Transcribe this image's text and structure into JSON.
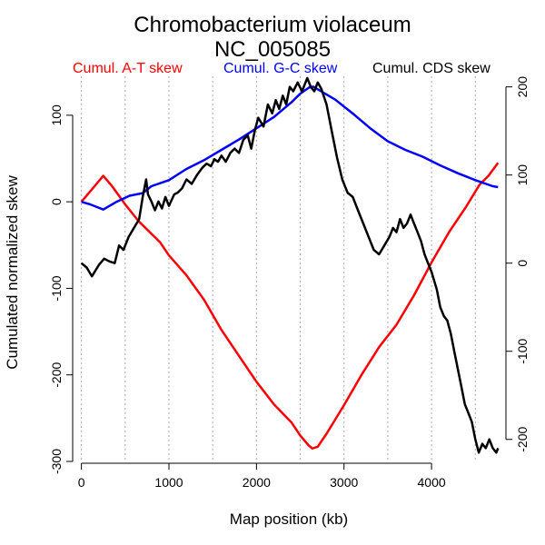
{
  "chart_data": {
    "type": "line",
    "title": "Chromobacterium violaceum",
    "subtitle": "NC_005085",
    "xlabel": "Map position (kb)",
    "ylabel": "Cumulated normalized skew",
    "xlim": [
      -100,
      4850
    ],
    "ylim": [
      -300,
      145
    ],
    "y2lim": [
      -225,
      212
    ],
    "xticks": [
      0,
      1000,
      2000,
      3000,
      4000
    ],
    "yticks": [
      -300,
      -200,
      -100,
      0,
      100
    ],
    "y2ticks": [
      -200,
      -100,
      0,
      100,
      200
    ],
    "vgrid": [
      0,
      500,
      1000,
      1500,
      2000,
      2500,
      3000,
      3500,
      4000,
      4500
    ],
    "legend": [
      {
        "label": "Cumul. A-T skew",
        "color": "#ff0000"
      },
      {
        "label": "Cumul. G-C skew",
        "color": "#0000ff"
      },
      {
        "label": "Cumul. CDS skew",
        "color": "#000000"
      }
    ],
    "series": [
      {
        "name": "Cumul. A-T skew",
        "color": "#ff0000",
        "axis": "left",
        "x": [
          0,
          150,
          250,
          350,
          500,
          650,
          800,
          900,
          1000,
          1200,
          1400,
          1600,
          1800,
          2000,
          2200,
          2400,
          2500,
          2600,
          2640,
          2700,
          2800,
          3000,
          3200,
          3400,
          3600,
          3800,
          4000,
          4200,
          4400,
          4550,
          4650,
          4760
        ],
        "values": [
          0,
          18,
          30,
          18,
          -3,
          -22,
          -37,
          -47,
          -62,
          -85,
          -113,
          -148,
          -178,
          -208,
          -234,
          -255,
          -270,
          -282,
          -285,
          -283,
          -268,
          -235,
          -200,
          -168,
          -142,
          -108,
          -70,
          -35,
          -5,
          20,
          30,
          45
        ]
      },
      {
        "name": "Cumul. G-C skew",
        "color": "#0000ff",
        "axis": "left",
        "x": [
          0,
          100,
          250,
          400,
          550,
          700,
          800,
          1000,
          1200,
          1400,
          1600,
          1800,
          2000,
          2200,
          2400,
          2500,
          2600,
          2650,
          2700,
          2900,
          3100,
          3300,
          3500,
          3700,
          3900,
          4100,
          4300,
          4500,
          4700,
          4760
        ],
        "values": [
          0,
          -3,
          -9,
          0,
          7,
          10,
          18,
          25,
          38,
          48,
          60,
          72,
          85,
          98,
          115,
          125,
          132,
          133,
          130,
          118,
          102,
          85,
          70,
          60,
          52,
          42,
          33,
          25,
          18,
          17
        ]
      },
      {
        "name": "Cumul. CDS skew",
        "color": "#000000",
        "axis": "right",
        "x": [
          0,
          60,
          120,
          200,
          260,
          320,
          380,
          430,
          480,
          540,
          600,
          660,
          700,
          740,
          760,
          800,
          840,
          880,
          920,
          960,
          1000,
          1060,
          1100,
          1150,
          1200,
          1260,
          1320,
          1380,
          1430,
          1480,
          1520,
          1560,
          1600,
          1650,
          1700,
          1750,
          1800,
          1850,
          1900,
          1940,
          1980,
          2020,
          2080,
          2130,
          2180,
          2220,
          2260,
          2300,
          2340,
          2380,
          2420,
          2470,
          2520,
          2580,
          2620,
          2660,
          2700,
          2740,
          2800,
          2860,
          2920,
          2980,
          3040,
          3100,
          3160,
          3220,
          3280,
          3340,
          3400,
          3460,
          3520,
          3560,
          3600,
          3640,
          3680,
          3720,
          3760,
          3800,
          3840,
          3880,
          3920,
          3960,
          4000,
          4060,
          4100,
          4140,
          4180,
          4220,
          4260,
          4300,
          4340,
          4380,
          4420,
          4460,
          4500,
          4540,
          4580,
          4620,
          4660,
          4700,
          4740,
          4760
        ],
        "values": [
          0,
          -5,
          -15,
          -2,
          5,
          2,
          0,
          20,
          15,
          30,
          40,
          50,
          75,
          95,
          78,
          70,
          60,
          70,
          62,
          75,
          65,
          78,
          80,
          85,
          95,
          90,
          100,
          108,
          113,
          110,
          118,
          115,
          122,
          115,
          125,
          130,
          125,
          140,
          145,
          130,
          150,
          165,
          155,
          180,
          170,
          185,
          175,
          190,
          180,
          200,
          195,
          205,
          195,
          210,
          200,
          195,
          205,
          198,
          180,
          150,
          120,
          95,
          80,
          75,
          60,
          45,
          30,
          15,
          10,
          20,
          30,
          40,
          35,
          50,
          40,
          45,
          55,
          45,
          35,
          25,
          10,
          0,
          -10,
          -30,
          -50,
          -60,
          -65,
          -80,
          -100,
          -120,
          -140,
          -160,
          -170,
          -180,
          -200,
          -215,
          -205,
          -210,
          -200,
          -210,
          -215,
          -210
        ]
      }
    ]
  }
}
